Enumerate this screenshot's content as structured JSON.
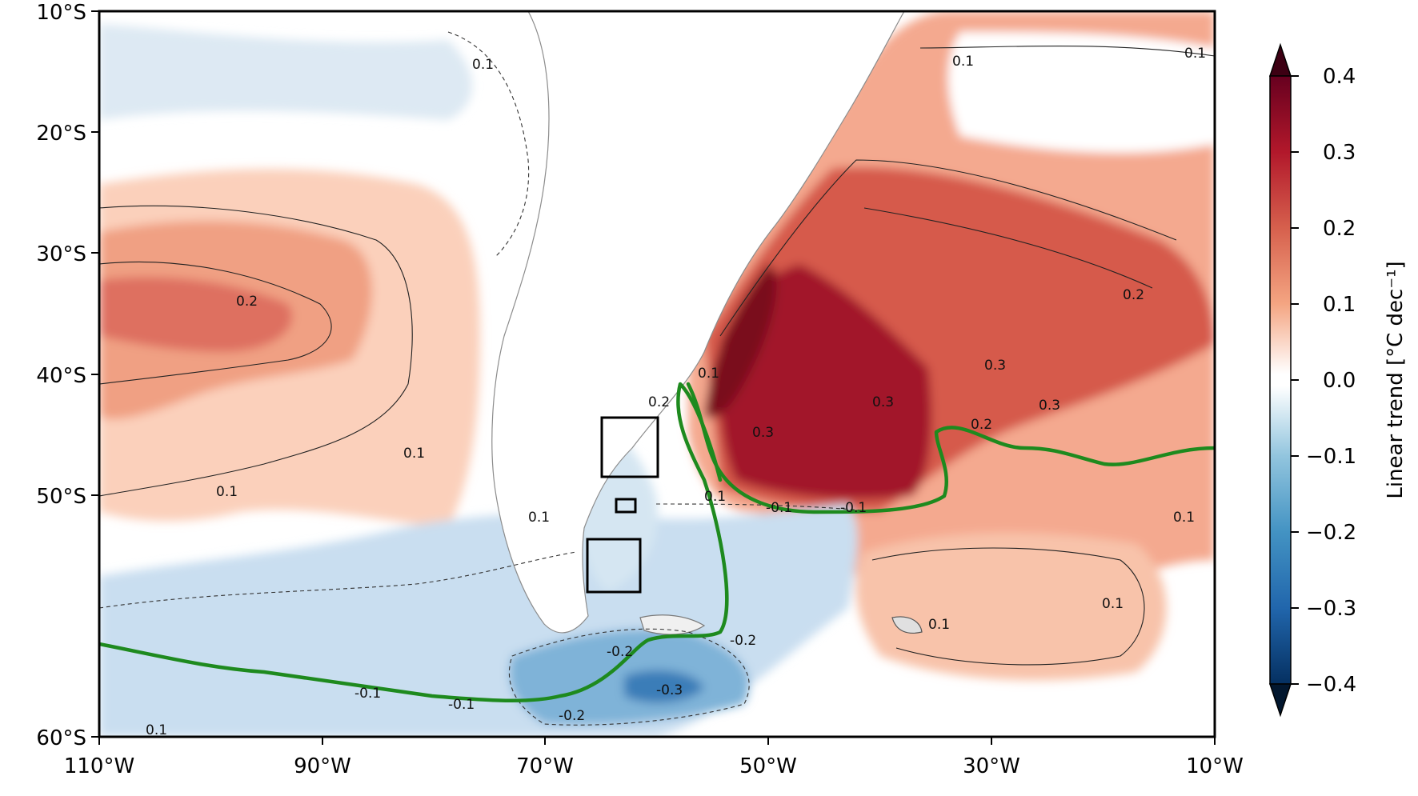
{
  "map": {
    "lon_ticks": [
      "110°W",
      "90°W",
      "70°W",
      "50°W",
      "30°W",
      "10°W"
    ],
    "lat_ticks": [
      "10°S",
      "20°S",
      "30°S",
      "40°S",
      "50°S",
      "60°S"
    ],
    "extent": {
      "lon": [
        -110,
        -10
      ],
      "lat": [
        -60,
        -10
      ]
    },
    "colorbar": {
      "label": "Linear trend [°C dec⁻¹]",
      "ticks": [
        "0.4",
        "0.3",
        "0.2",
        "0.1",
        "0.0",
        "−0.1",
        "−0.2",
        "−0.3",
        "−0.4"
      ],
      "range": [
        -0.4,
        0.4
      ],
      "colormap": "RdBu_r",
      "extend": "both"
    },
    "contour_labels": [
      "0.1",
      "0.1",
      "0.1",
      "0.1",
      "0.1",
      "0.2",
      "0.2",
      "0.2",
      "0.3",
      "0.3",
      "0.3",
      "0.3",
      "0.1",
      "0.1",
      "0.1",
      "-0.1",
      "-0.1",
      "-0.1",
      "-0.2",
      "-0.2",
      "-0.2",
      "-0.3",
      "0.1",
      "0.1",
      "-0.1",
      "0.2",
      "0.1",
      "0.1"
    ],
    "boxes_count": 3,
    "front_line_color": "#1e8a1e",
    "colors": {
      "strong_warm": "#8b0a1f",
      "warm": "#d6604d",
      "mild_warm": "#f4a582",
      "light_warm": "#fddbc7",
      "light_cool": "#d1e5f0",
      "mild_cool": "#92c5de",
      "cool": "#4393c3",
      "strong_cool": "#2166ac"
    }
  }
}
